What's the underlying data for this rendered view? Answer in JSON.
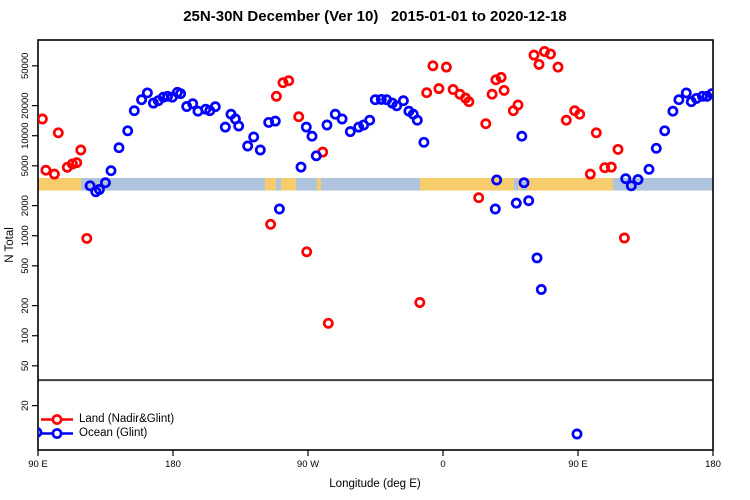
{
  "figure": {
    "title": "25N-30N December (Ver 10)   2015-01-01 to 2020-12-18"
  },
  "chart_data": {
    "type": "scatter",
    "title": "25N-30N December (Ver 10)   2015-01-01 to 2020-12-18",
    "xlabel": "Longitude (deg E)",
    "ylabel": "N Total",
    "grid": false,
    "x_axis": {
      "unit": "running degrees east (axis wraps past 180 back through 90 E)",
      "range_deg": [
        90,
        540
      ],
      "ticks": [
        {
          "deg": 90,
          "label": "90 E"
        },
        {
          "deg": 180,
          "label": "180"
        },
        {
          "deg": 270,
          "label": "90 W"
        },
        {
          "deg": 360,
          "label": "0"
        },
        {
          "deg": 450,
          "label": "90 E"
        },
        {
          "deg": 540,
          "label": "180"
        }
      ]
    },
    "y_axis": {
      "scale": "log10",
      "range": [
        7.2,
        90600
      ],
      "ticks": [
        20,
        50,
        100,
        200,
        500,
        1000,
        2000,
        5000,
        10000,
        20000,
        50000
      ]
    },
    "reference_line_n": 36,
    "legend": {
      "position": "bottom-left",
      "items": [
        {
          "label": "Land (Nadir&Glint)",
          "color": "#ff0000"
        },
        {
          "label": "Ocean (Glint)",
          "color": "#0000ff"
        }
      ]
    },
    "map_strip": {
      "description": "thin land/ocean map band across plot",
      "n_top": 3780,
      "n_bottom": 2830,
      "land_color": "#f6cc6d",
      "ocean_color": "#aec3dc",
      "land_segments_deg": [
        [
          90,
          118.7
        ],
        [
          241.3,
          248.7
        ],
        [
          252,
          262
        ],
        [
          276,
          278.7
        ],
        [
          344.7,
          407.3
        ],
        [
          410,
          412
        ],
        [
          416,
          473.3
        ]
      ]
    },
    "series": [
      {
        "name": "Land (Nadir&Glint)",
        "color": "#ff0000",
        "marker": "open-circle",
        "points": [
          [
            92.9,
            14700
          ],
          [
            95.3,
            4520
          ],
          [
            100.9,
            4130
          ],
          [
            103.5,
            10700
          ],
          [
            109.5,
            4830
          ],
          [
            112.9,
            5210
          ],
          [
            115.8,
            5370
          ],
          [
            118.5,
            7200
          ],
          [
            122.5,
            940
          ],
          [
            245.1,
            1300
          ],
          [
            248.9,
            24800
          ],
          [
            253.3,
            33900
          ],
          [
            257.1,
            35500
          ],
          [
            263.8,
            15500
          ],
          [
            269.1,
            690
          ],
          [
            279.8,
            6850
          ],
          [
            283.5,
            133
          ],
          [
            344.5,
            215
          ],
          [
            349.1,
            26900
          ],
          [
            353.3,
            50000
          ],
          [
            357.3,
            29600
          ],
          [
            362.3,
            48600
          ],
          [
            366.7,
            29000
          ],
          [
            371.3,
            26000
          ],
          [
            375.0,
            23800
          ],
          [
            377.3,
            21900
          ],
          [
            383.8,
            2400
          ],
          [
            388.5,
            13200
          ],
          [
            392.7,
            26000
          ],
          [
            395.3,
            36200
          ],
          [
            398.7,
            38300
          ],
          [
            400.7,
            28400
          ],
          [
            406.9,
            17800
          ],
          [
            410.0,
            20300
          ],
          [
            420.7,
            64000
          ],
          [
            424.0,
            51600
          ],
          [
            427.7,
            69500
          ],
          [
            431.7,
            65600
          ],
          [
            436.7,
            48600
          ],
          [
            442.2,
            14300
          ],
          [
            447.8,
            17800
          ],
          [
            451.1,
            16400
          ],
          [
            458.2,
            4130
          ],
          [
            462.2,
            10700
          ],
          [
            467.8,
            4790
          ],
          [
            472.2,
            4850
          ],
          [
            476.7,
            7300
          ],
          [
            480.9,
            950
          ]
        ]
      },
      {
        "name": "Ocean (Glint)",
        "color": "#0000ff",
        "marker": "open-circle",
        "points": [
          [
            89.3,
            10.8
          ],
          [
            124.7,
            3160
          ],
          [
            128.5,
            2750
          ],
          [
            130.9,
            2900
          ],
          [
            134.9,
            3390
          ],
          [
            138.7,
            4470
          ],
          [
            144.0,
            7590
          ],
          [
            149.8,
            11200
          ],
          [
            154.2,
            17800
          ],
          [
            159.1,
            22900
          ],
          [
            162.9,
            26800
          ],
          [
            166.9,
            21200
          ],
          [
            170.2,
            22400
          ],
          [
            173.5,
            24300
          ],
          [
            176.4,
            24800
          ],
          [
            179.5,
            24300
          ],
          [
            182.9,
            27200
          ],
          [
            185.1,
            26300
          ],
          [
            189.1,
            19600
          ],
          [
            193.1,
            20900
          ],
          [
            196.7,
            17600
          ],
          [
            201.8,
            18400
          ],
          [
            204.5,
            17800
          ],
          [
            208.2,
            19500
          ],
          [
            214.9,
            12200
          ],
          [
            218.7,
            16400
          ],
          [
            221.6,
            14700
          ],
          [
            223.8,
            12500
          ],
          [
            229.8,
            7900
          ],
          [
            233.8,
            9700
          ],
          [
            238.2,
            7200
          ],
          [
            243.8,
            13600
          ],
          [
            248.2,
            14000
          ],
          [
            250.9,
            1850
          ],
          [
            265.3,
            4850
          ],
          [
            268.9,
            12200
          ],
          [
            272.7,
            9900
          ],
          [
            275.5,
            6300
          ],
          [
            282.7,
            12800
          ],
          [
            288.2,
            16400
          ],
          [
            292.7,
            14700
          ],
          [
            298.2,
            11000
          ],
          [
            303.8,
            12200
          ],
          [
            307.1,
            12800
          ],
          [
            311.1,
            14300
          ],
          [
            314.9,
            22900
          ],
          [
            318.9,
            23100
          ],
          [
            322.4,
            22900
          ],
          [
            326.2,
            21200
          ],
          [
            329.1,
            19900
          ],
          [
            333.6,
            22400
          ],
          [
            337.3,
            17600
          ],
          [
            340.2,
            16400
          ],
          [
            342.9,
            14300
          ],
          [
            347.3,
            8590
          ],
          [
            394.9,
            1850
          ],
          [
            395.8,
            3610
          ],
          [
            408.9,
            2120
          ],
          [
            412.5,
            9900
          ],
          [
            414.0,
            3390
          ],
          [
            417.1,
            2240
          ],
          [
            422.7,
            600
          ],
          [
            425.5,
            290
          ],
          [
            449.3,
            10.4
          ],
          [
            481.8,
            3720
          ],
          [
            485.5,
            3160
          ],
          [
            490.0,
            3640
          ],
          [
            497.3,
            4620
          ],
          [
            502.2,
            7480
          ],
          [
            507.8,
            11200
          ],
          [
            513.3,
            17600
          ],
          [
            517.3,
            22900
          ],
          [
            522.2,
            26800
          ],
          [
            525.5,
            21900
          ],
          [
            528.9,
            23600
          ],
          [
            532.9,
            24800
          ],
          [
            536.0,
            24800
          ],
          [
            539.3,
            26300
          ]
        ]
      }
    ]
  }
}
